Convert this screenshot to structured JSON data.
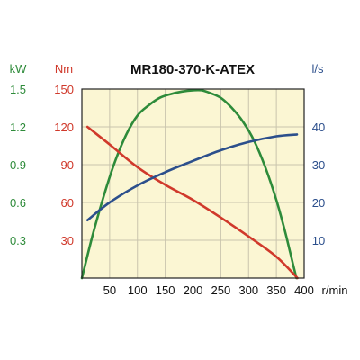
{
  "chart_data": {
    "type": "line",
    "title": "MR180-370-K-ATEX",
    "x": {
      "unit": "r/min",
      "range": [
        0,
        400
      ],
      "ticks": [
        50,
        100,
        150,
        200,
        250,
        300,
        350,
        400
      ]
    },
    "axes": {
      "kw": {
        "unit": "kW",
        "range": [
          0,
          1.5
        ],
        "ticks": [
          0.3,
          0.6,
          0.9,
          1.2,
          1.5
        ],
        "tick_labels": [
          "0.3",
          "0.6",
          "0.9",
          "1.2",
          "1.5"
        ],
        "color": "#2e8b3a"
      },
      "nm": {
        "unit": "Nm",
        "range": [
          0,
          150
        ],
        "ticks": [
          30,
          60,
          90,
          120,
          150
        ],
        "tick_labels": [
          "30",
          "60",
          "90",
          "120",
          "150"
        ],
        "color": "#d0392b"
      },
      "ls": {
        "unit": "l/s",
        "range": [
          0,
          50
        ],
        "ticks": [
          10,
          20,
          30,
          40
        ],
        "tick_labels": [
          "10",
          "20",
          "30",
          "40"
        ],
        "color": "#2c4f8c"
      }
    },
    "grid": true,
    "plot_background": "#fbf6d3",
    "series": [
      {
        "axis": "kw",
        "color": "#2e8b3a",
        "points": [
          [
            0,
            0
          ],
          [
            20,
            0.35
          ],
          [
            40,
            0.66
          ],
          [
            60,
            0.93
          ],
          [
            80,
            1.14
          ],
          [
            100,
            1.29
          ],
          [
            120,
            1.37
          ],
          [
            140,
            1.43
          ],
          [
            160,
            1.46
          ],
          [
            180,
            1.48
          ],
          [
            200,
            1.49
          ],
          [
            215,
            1.49
          ],
          [
            230,
            1.47
          ],
          [
            250,
            1.43
          ],
          [
            270,
            1.35
          ],
          [
            290,
            1.24
          ],
          [
            310,
            1.09
          ],
          [
            330,
            0.88
          ],
          [
            350,
            0.62
          ],
          [
            365,
            0.38
          ],
          [
            375,
            0.2
          ],
          [
            386,
            0
          ]
        ]
      },
      {
        "axis": "nm",
        "color": "#d0392b",
        "points": [
          [
            10,
            120
          ],
          [
            50,
            106
          ],
          [
            100,
            88
          ],
          [
            150,
            74
          ],
          [
            200,
            62
          ],
          [
            250,
            48
          ],
          [
            300,
            33
          ],
          [
            350,
            17
          ],
          [
            388,
            0
          ]
        ]
      },
      {
        "axis": "ls",
        "color": "#2c4f8c",
        "points": [
          [
            10,
            15.3
          ],
          [
            50,
            20
          ],
          [
            100,
            24.5
          ],
          [
            150,
            28
          ],
          [
            200,
            31
          ],
          [
            250,
            33.8
          ],
          [
            300,
            36
          ],
          [
            350,
            37.5
          ],
          [
            387,
            38
          ]
        ]
      }
    ]
  }
}
